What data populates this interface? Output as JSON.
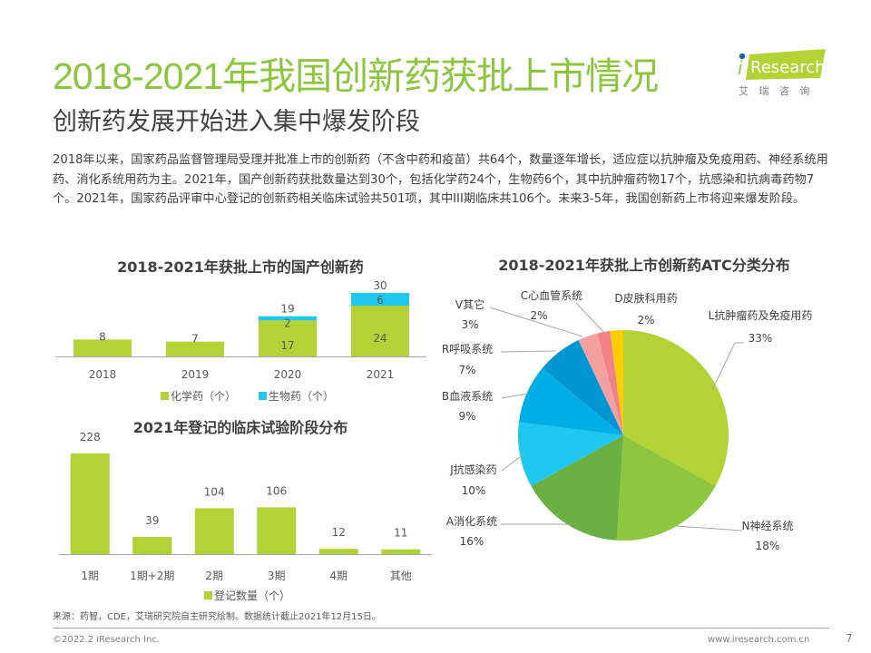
{
  "header": {
    "title": "2018-2021年我国创新药获批上市情况",
    "subtitle": "创新药发展开始进入集中爆发阶段",
    "logo_text": "Research",
    "logo_i": "i",
    "logo_cn": "艾 瑞 咨 询",
    "brand_color": "#8cc63f"
  },
  "intro": "2018年以来，国家药品监督管理局受理并批准上市的创新药（不含中药和疫苗）共64个，数量逐年增长，适应症以抗肿瘤及免疫用药、神经系统用药、消化系统用药为主。2021年，国产创新药获批数量达到30个，包括化学药24个，生物药6个，其中抗肿瘤药物17个，抗感染和抗病毒药物7个。2021年，国家药品评审中心登记的创新药相关临床试验共501项，其中III期临床共106个。未来3-5年，我国创新药上市将迎来爆发阶段。",
  "chart_data": [
    {
      "type": "bar",
      "stacked": true,
      "title": "2018-2021年获批上市的国产创新药",
      "categories": [
        "2018",
        "2019",
        "2020",
        "2021"
      ],
      "series": [
        {
          "name": "化学药（个）",
          "values": [
            8,
            7,
            17,
            24
          ],
          "color": "#b3d235"
        },
        {
          "name": "生物药（个）",
          "values": [
            0,
            0,
            2,
            6
          ],
          "color": "#1fc8f0"
        }
      ],
      "totals": [
        8,
        7,
        19,
        30
      ],
      "total_labels": [
        "",
        "",
        "19",
        "30"
      ],
      "segment_labels": [
        [
          "8",
          ""
        ],
        [
          "7",
          ""
        ],
        [
          "17",
          "2"
        ],
        [
          "24",
          "6"
        ]
      ],
      "xlabel": "",
      "ylabel": "",
      "ylim": [
        0,
        30
      ],
      "legend": "bottom",
      "grid": false
    },
    {
      "type": "bar",
      "title": "2021年登记的临床试验阶段分布",
      "categories": [
        "1期",
        "1期+2期",
        "2期",
        "3期",
        "4期",
        "其他"
      ],
      "series": [
        {
          "name": "登记数量（个）",
          "values": [
            228,
            39,
            104,
            106,
            12,
            11
          ],
          "color": "#b3d235"
        }
      ],
      "xlabel": "",
      "ylabel": "",
      "ylim": [
        0,
        228
      ],
      "legend": "bottom",
      "grid": false
    },
    {
      "type": "pie",
      "title": "2018-2021年获批上市创新药ATC分类分布",
      "slices": [
        {
          "label": "L抗肿瘤药及免疫用药",
          "value": 33,
          "pct": "33%",
          "color": "#b3d235"
        },
        {
          "label": "N神经系统",
          "value": 18,
          "pct": "18%",
          "color": "#8dc63f"
        },
        {
          "label": "A消化系统",
          "value": 16,
          "pct": "16%",
          "color": "#6ab043"
        },
        {
          "label": "J抗感染药",
          "value": 10,
          "pct": "10%",
          "color": "#1fc8f0"
        },
        {
          "label": "B血液系统",
          "value": 9,
          "pct": "9%",
          "color": "#00aee6"
        },
        {
          "label": "R呼吸系统",
          "value": 7,
          "pct": "7%",
          "color": "#0096d2"
        },
        {
          "label": "V其它",
          "value": 3,
          "pct": "3%",
          "color": "#f4a0a0"
        },
        {
          "label": "C心血管系统",
          "value": 2,
          "pct": "2%",
          "color": "#f0828a"
        },
        {
          "label": "D皮肤科用药",
          "value": 2,
          "pct": "2%",
          "color": "#ffcc00"
        }
      ],
      "legend": "none"
    }
  ],
  "footer": {
    "source": "来源：药智，CDE，艾瑞研究院自主研究绘制。数据统计截止2021年12月15日。",
    "copyright": "©2022.2 iResearch Inc.",
    "website": "www.iresearch.com.cn",
    "page_number": "7"
  }
}
